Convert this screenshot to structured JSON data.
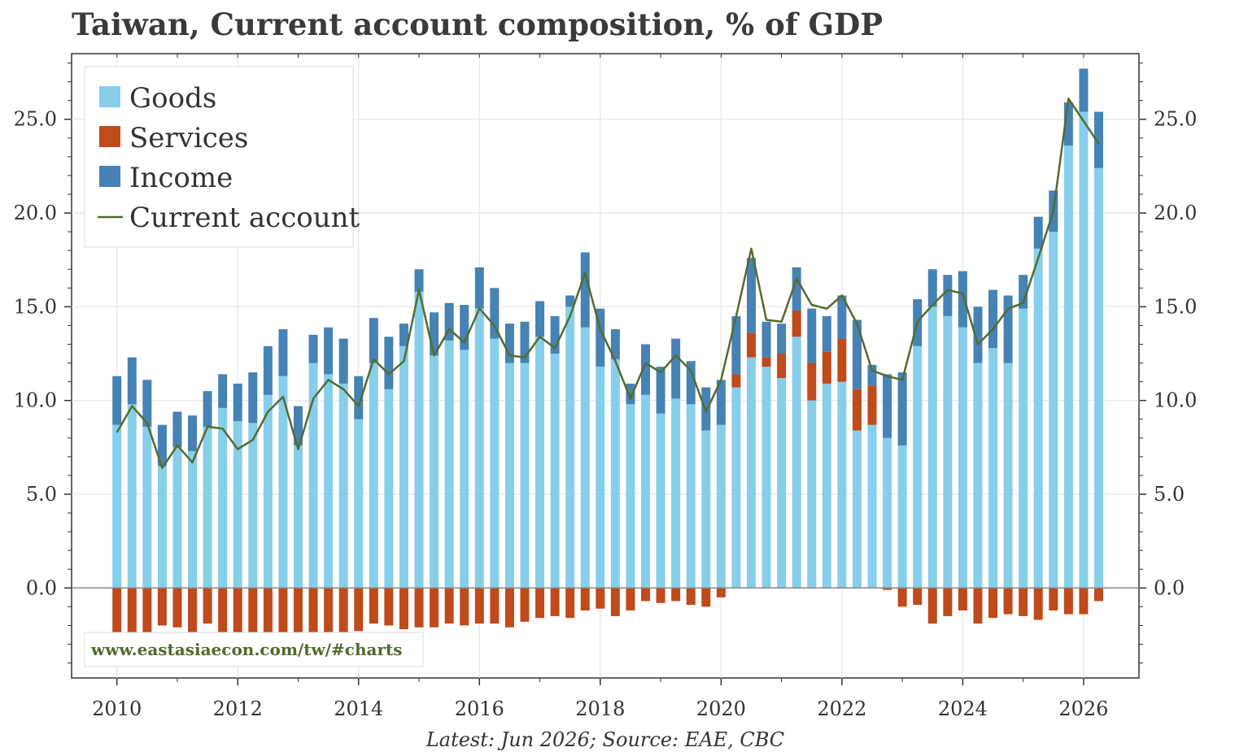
{
  "chart_data": {
    "type": "bar",
    "title": "Taiwan, Current account composition, % of GDP",
    "subtitle": "",
    "xlabel": "",
    "ylabel": "",
    "source": "Latest: Jun 2026; Source: EAE, CBC",
    "watermark": "www.eastasiaecon.com/tw/#charts",
    "ylim": [
      -4.8,
      28.5
    ],
    "xlim": [
      "2009-04",
      "2026-12"
    ],
    "y_ticks": [
      "0.0",
      "5.0",
      "10.0",
      "15.0",
      "20.0",
      "25.0"
    ],
    "y_tick_values": [
      0,
      5,
      10,
      15,
      20,
      25
    ],
    "x_ticks": [
      "2010",
      "2012",
      "2014",
      "2016",
      "2018",
      "2020",
      "2022",
      "2024",
      "2026"
    ],
    "grid": true,
    "legend_position": "top-left",
    "stacked": true,
    "colors": {
      "Goods": "#87ceeb",
      "Services": "#bf4a1a",
      "Income": "#4682b4",
      "Current account": "#556b2f"
    },
    "x": [
      "2010-01",
      "2010-04",
      "2010-07",
      "2010-10",
      "2011-01",
      "2011-04",
      "2011-07",
      "2011-10",
      "2012-01",
      "2012-04",
      "2012-07",
      "2012-10",
      "2013-01",
      "2013-04",
      "2013-07",
      "2013-10",
      "2014-01",
      "2014-04",
      "2014-07",
      "2014-10",
      "2015-01",
      "2015-04",
      "2015-07",
      "2015-10",
      "2016-01",
      "2016-04",
      "2016-07",
      "2016-10",
      "2017-01",
      "2017-04",
      "2017-07",
      "2017-10",
      "2018-01",
      "2018-04",
      "2018-07",
      "2018-10",
      "2019-01",
      "2019-04",
      "2019-07",
      "2019-10",
      "2020-01",
      "2020-04",
      "2020-07",
      "2020-10",
      "2021-01",
      "2021-04",
      "2021-07",
      "2021-10",
      "2022-01",
      "2022-04",
      "2022-07",
      "2022-10",
      "2023-01",
      "2023-04",
      "2023-07",
      "2023-10",
      "2024-01",
      "2024-04",
      "2024-07",
      "2024-10",
      "2025-01",
      "2025-04",
      "2025-07",
      "2025-10",
      "2026-01",
      "2026-04"
    ],
    "series": [
      {
        "name": "Goods",
        "kind": "bar",
        "values": [
          8.7,
          9.8,
          8.6,
          6.5,
          7.5,
          7.3,
          8.6,
          9.6,
          8.9,
          8.8,
          10.3,
          11.3,
          7.6,
          12.0,
          11.4,
          10.9,
          9.0,
          12.0,
          10.6,
          12.9,
          15.8,
          12.4,
          13.2,
          12.7,
          14.9,
          13.3,
          12.0,
          12.0,
          13.4,
          12.5,
          15.0,
          13.9,
          11.8,
          12.2,
          9.8,
          10.3,
          9.3,
          10.1,
          9.8,
          8.4,
          8.7,
          10.7,
          12.3,
          11.8,
          11.2,
          13.4,
          10.0,
          10.9,
          11.0,
          8.4,
          8.7,
          8.0,
          7.6,
          12.9,
          15.0,
          14.5,
          13.9,
          12.0,
          12.8,
          12.0,
          14.9,
          18.1,
          19.0,
          23.6,
          25.4,
          22.4
        ]
      },
      {
        "name": "Services",
        "kind": "bar",
        "values": [
          -3.0,
          -2.6,
          -2.6,
          -2.0,
          -2.1,
          -2.7,
          -1.9,
          -2.7,
          -4.2,
          -3.6,
          -3.4,
          -3.2,
          -3.4,
          -2.5,
          -2.8,
          -2.6,
          -2.3,
          -1.9,
          -2.0,
          -2.2,
          -2.1,
          -2.1,
          -1.9,
          -2.0,
          -1.9,
          -1.9,
          -2.1,
          -1.8,
          -1.6,
          -1.5,
          -1.6,
          -1.2,
          -1.1,
          -1.5,
          -1.2,
          -0.7,
          -0.8,
          -0.7,
          -0.9,
          -1.0,
          -0.5,
          0.7,
          1.3,
          0.5,
          1.3,
          1.4,
          2.0,
          1.7,
          2.3,
          2.2,
          2.1,
          -0.1,
          -1.0,
          -0.9,
          -1.9,
          -1.5,
          -1.2,
          -1.9,
          -1.6,
          -1.4,
          -1.5,
          -1.7,
          -1.2,
          -1.4,
          -1.4,
          -0.7
        ]
      },
      {
        "name": "Income",
        "kind": "bar",
        "values": [
          2.6,
          2.5,
          2.5,
          2.2,
          1.9,
          1.9,
          1.9,
          1.8,
          2.0,
          2.7,
          2.6,
          2.5,
          2.1,
          1.5,
          2.5,
          2.4,
          2.3,
          2.4,
          2.8,
          1.2,
          1.2,
          2.3,
          2.0,
          2.4,
          2.2,
          2.7,
          2.1,
          2.2,
          1.9,
          2.0,
          0.6,
          4.0,
          3.1,
          1.6,
          1.1,
          2.7,
          2.5,
          3.2,
          2.3,
          2.3,
          2.4,
          3.1,
          4.0,
          1.9,
          1.6,
          2.3,
          2.9,
          1.9,
          2.3,
          3.7,
          1.1,
          3.4,
          3.9,
          2.5,
          2.0,
          2.2,
          3.0,
          3.0,
          3.1,
          3.6,
          1.8,
          1.7,
          2.2,
          2.3,
          2.3,
          3.0
        ]
      },
      {
        "name": "Current account",
        "kind": "line",
        "values": [
          8.3,
          9.7,
          8.8,
          6.4,
          7.6,
          6.7,
          8.6,
          8.5,
          7.4,
          7.9,
          9.4,
          10.2,
          7.4,
          10.1,
          11.1,
          10.6,
          9.7,
          12.2,
          11.4,
          12.1,
          15.9,
          12.4,
          13.8,
          13.1,
          14.9,
          14.0,
          12.4,
          12.3,
          13.4,
          12.8,
          14.5,
          16.8,
          13.8,
          12.1,
          10.1,
          12.0,
          11.5,
          12.4,
          11.6,
          9.4,
          11.1,
          14.5,
          18.1,
          14.3,
          14.2,
          16.5,
          15.1,
          14.9,
          15.6,
          14.1,
          11.6,
          11.3,
          11.1,
          14.2,
          15.1,
          15.9,
          15.7,
          13.0,
          13.8,
          14.9,
          15.2,
          17.6,
          20.1,
          26.1,
          24.9,
          23.7
        ]
      }
    ]
  }
}
